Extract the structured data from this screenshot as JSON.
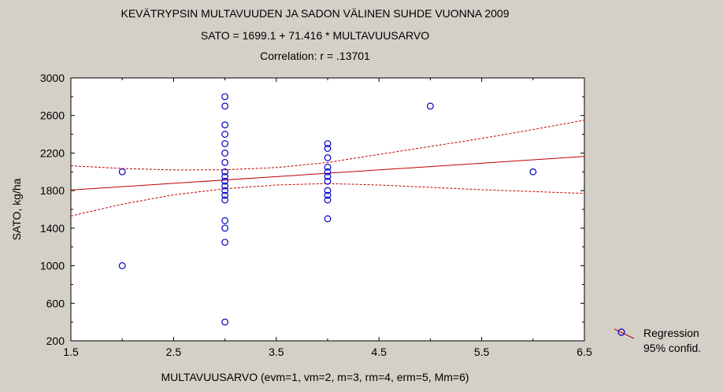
{
  "chart_data": {
    "type": "scatter",
    "title": "KEVÄTRYPSIN MULTAVUUDEN JA SADON VÄLINEN SUHDE VUONNA 2009",
    "subtitle": "SATO = 1699.1 + 71.416 * MULTAVUUSARVO",
    "correlation": "Correlation: r = .13701",
    "xlabel": "MULTAVUUSARVO (evm=1, vm=2, m=3, rm=4, erm=5, Mm=6)",
    "ylabel": "SATO, kg/ha",
    "xlim": [
      1.5,
      6.5
    ],
    "ylim": [
      200,
      3000
    ],
    "x_ticks": [
      "1.5",
      "2.5",
      "3.5",
      "4.5",
      "5.5",
      "6.5"
    ],
    "y_ticks": [
      "200",
      "600",
      "1000",
      "1400",
      "1800",
      "2200",
      "2600",
      "3000"
    ],
    "grid": false,
    "legend_position": "bottom-right",
    "legend": [
      "Regression",
      "95% confid."
    ],
    "regression": {
      "intercept": 1699.1,
      "slope": 71.416
    },
    "confidence_band": {
      "x": [
        1.5,
        2.0,
        2.5,
        3.0,
        3.5,
        4.0,
        4.5,
        5.0,
        5.5,
        6.0,
        6.5
      ],
      "upper": [
        2065,
        2035,
        2020,
        2022,
        2045,
        2100,
        2185,
        2270,
        2355,
        2450,
        2550
      ],
      "lower": [
        1530,
        1655,
        1755,
        1820,
        1860,
        1875,
        1860,
        1835,
        1810,
        1790,
        1770
      ]
    },
    "series": [
      {
        "x": [
          2,
          2,
          3,
          3,
          3,
          3,
          3,
          3,
          3,
          3,
          3,
          3,
          3,
          3,
          3,
          3,
          3,
          3,
          3,
          3,
          4,
          4,
          4,
          4,
          4,
          4,
          4,
          4,
          4,
          4,
          4,
          5,
          6
        ],
        "y": [
          2000,
          1000,
          2800,
          2700,
          2500,
          2400,
          2300,
          2200,
          2100,
          2000,
          1950,
          1900,
          1800,
          1750,
          1700,
          1480,
          1400,
          1250,
          400,
          1850,
          2300,
          2250,
          2150,
          2050,
          2000,
          1950,
          1900,
          1800,
          1750,
          1700,
          1500,
          2700,
          2000
        ]
      }
    ],
    "colors": {
      "points": "#0000c0",
      "regression": "#c00000",
      "background": "#d4d0c8",
      "plot_area": "#ffffff"
    }
  }
}
